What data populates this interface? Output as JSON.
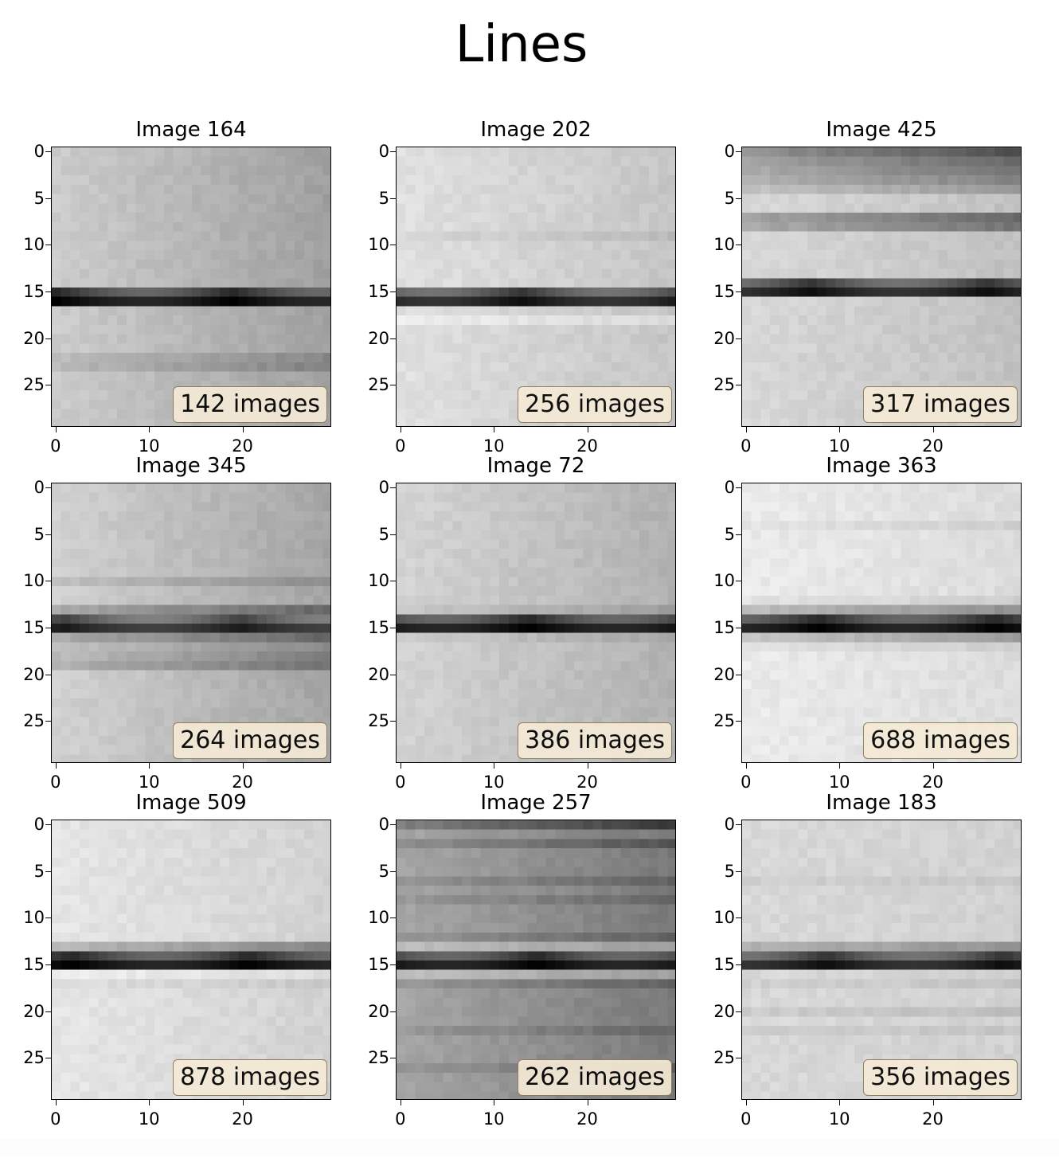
{
  "title": "Lines",
  "chart_data": {
    "type": "heatmap",
    "title": "Lines",
    "colormap": "gray",
    "layout": "3x3 grid",
    "xticks": [
      "0",
      "10",
      "20"
    ],
    "yticks": [
      "0",
      "5",
      "10",
      "15",
      "20",
      "25"
    ],
    "grid_size": [
      30,
      30
    ],
    "panels": [
      {
        "label": "Image 164",
        "count_label": "142 images",
        "background": 0.8,
        "dark_band_rows": [
          15,
          16
        ],
        "min_value": 0.0
      },
      {
        "label": "Image 202",
        "count_label": "256 images",
        "background": 0.88,
        "dark_band_rows": [
          15,
          16
        ],
        "min_value": 0.05
      },
      {
        "label": "Image 425",
        "count_label": "317 images",
        "background": 0.85,
        "dark_band_rows": [
          14,
          15
        ],
        "min_value": 0.05
      },
      {
        "label": "Image 345",
        "count_label": "264 images",
        "background": 0.82,
        "dark_band_rows": [
          14,
          15
        ],
        "min_value": 0.1
      },
      {
        "label": "Image 72",
        "count_label": "386 images",
        "background": 0.83,
        "dark_band_rows": [
          14,
          15
        ],
        "min_value": 0.0
      },
      {
        "label": "Image 363",
        "count_label": "688 images",
        "background": 0.92,
        "dark_band_rows": [
          14,
          15
        ],
        "min_value": 0.0
      },
      {
        "label": "Image 509",
        "count_label": "878 images",
        "background": 0.9,
        "dark_band_rows": [
          14,
          15
        ],
        "min_value": 0.0
      },
      {
        "label": "Image 257",
        "count_label": "262 images",
        "background": 0.65,
        "dark_band_rows": [
          14,
          15
        ],
        "min_value": 0.0
      },
      {
        "label": "Image 183",
        "count_label": "356 images",
        "background": 0.85,
        "dark_band_rows": [
          14,
          15
        ],
        "min_value": 0.05
      }
    ]
  }
}
